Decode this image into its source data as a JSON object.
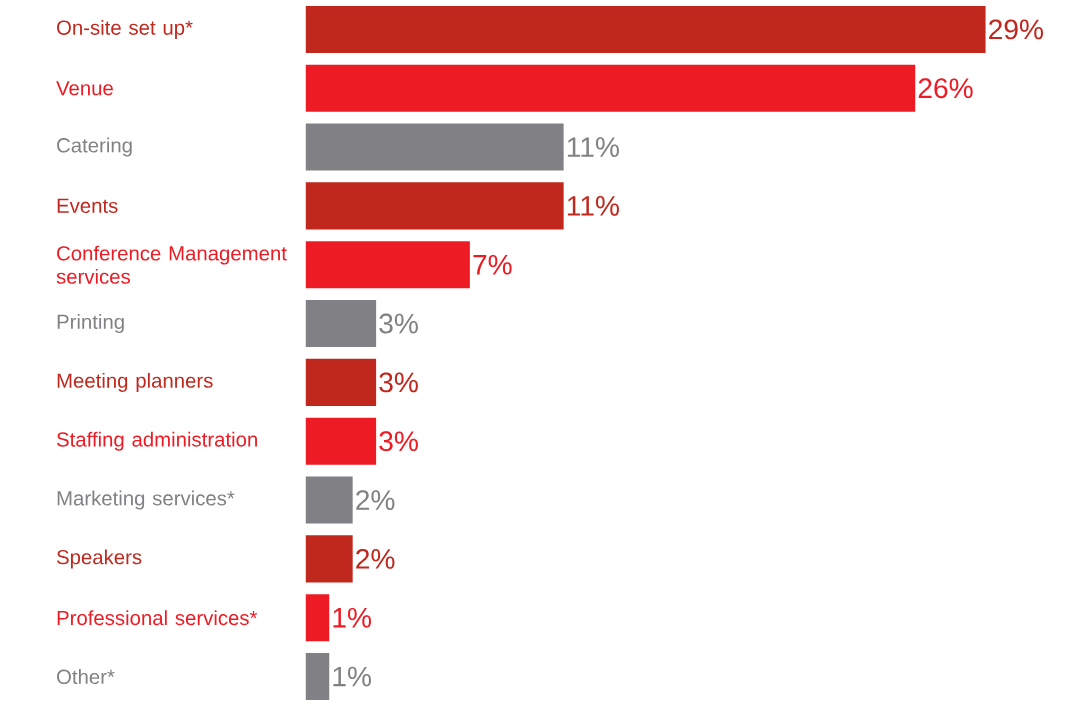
{
  "chart_data": {
    "type": "bar",
    "orientation": "horizontal",
    "categories": [
      "On-site set up*",
      "Venue",
      "Catering",
      "Events",
      "Conference Management services",
      "Printing",
      "Meeting planners",
      "Staffing administration",
      "Marketing services*",
      "Speakers",
      "Professional services*",
      "Other*"
    ],
    "values": [
      29,
      26,
      11,
      11,
      7,
      3,
      3,
      3,
      2,
      2,
      1,
      1
    ],
    "value_labels": [
      "29%",
      "26%",
      "11%",
      "11%",
      "7%",
      "3%",
      "3%",
      "3%",
      "2%",
      "2%",
      "1%",
      "1%"
    ],
    "colors": [
      "#c0281e",
      "#ed1c24",
      "#808085",
      "#c0281e",
      "#ed1c24",
      "#808085",
      "#c0281e",
      "#ed1c24",
      "#808085",
      "#c0281e",
      "#ed1c24",
      "#808085"
    ]
  }
}
